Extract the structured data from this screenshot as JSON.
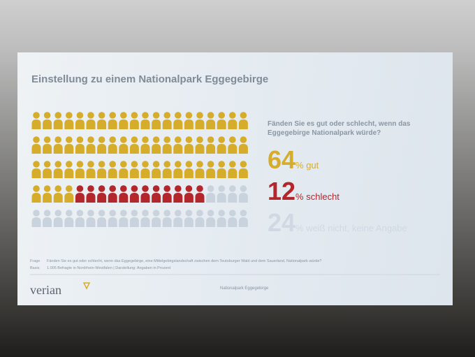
{
  "chart_data": {
    "type": "pictogram",
    "title": "Einstellung zu einem Nationalpark Eggegebirge",
    "question": "Fänden Sie es gut oder schlecht, wenn das Eggegebirge Nationalpark würde?",
    "series": [
      {
        "name": "% gut",
        "color": "#d6ad2b",
        "values": [
          64
        ]
      },
      {
        "name": "% schlecht",
        "color": "#b3262c",
        "values": [
          12
        ]
      },
      {
        "name": "% weiß nicht, keine Angabe",
        "color": "#c9d3de",
        "values": [
          24
        ]
      }
    ],
    "footnote": {
      "question_label": "Frage",
      "question_text": "Fänden Sie es gut oder schlecht, wenn das Eggegebirge, eine Mittelgebirgslandschaft zwischen dem Teutoburger Wald und dem Sauerland, Nationalpark würde?",
      "base_label": "Basis",
      "base_text": "1.005 Befragte in Nordrhein-Westfalen | Darstellung: Angaben in Prozent"
    },
    "logo": "verian",
    "footer": "Nationalpark Eggegebirge"
  }
}
